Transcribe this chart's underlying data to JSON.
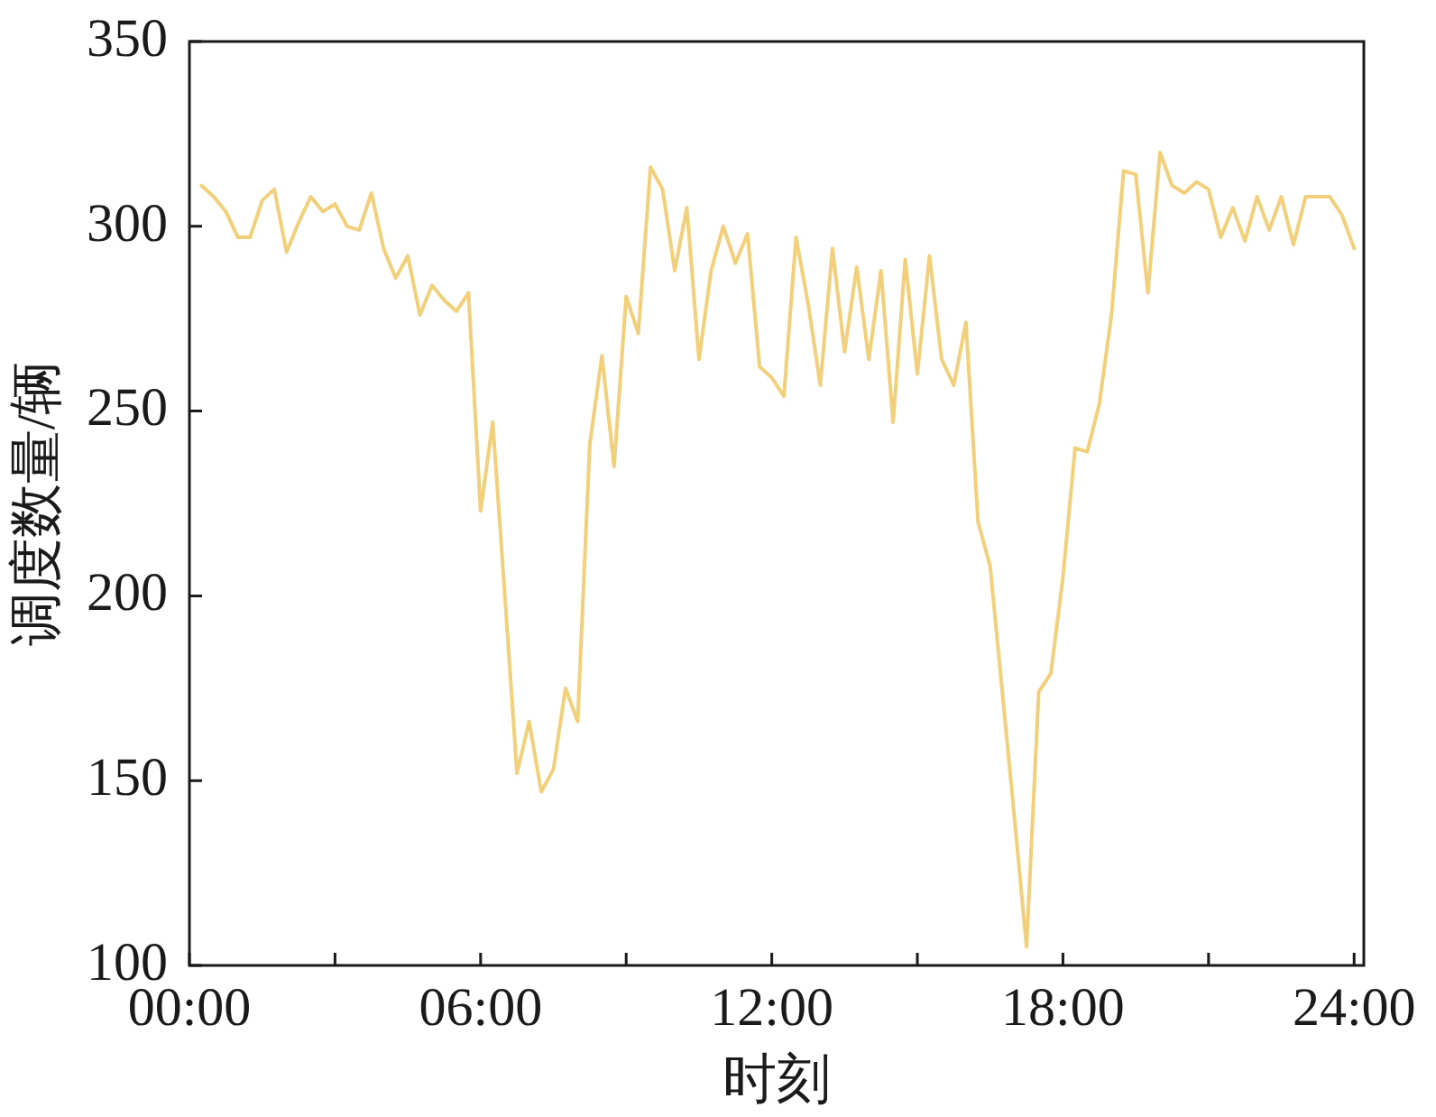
{
  "chart_data": {
    "type": "line",
    "xlabel": "时刻",
    "ylabel": "调度数量/辆",
    "x": [
      0.25,
      0.5,
      0.75,
      1,
      1.25,
      1.5,
      1.75,
      2,
      2.25,
      2.5,
      2.75,
      3,
      3.25,
      3.5,
      3.75,
      4,
      4.25,
      4.5,
      4.75,
      5,
      5.25,
      5.5,
      5.75,
      6,
      6.25,
      6.5,
      6.75,
      7,
      7.25,
      7.5,
      7.75,
      8,
      8.25,
      8.5,
      8.75,
      9,
      9.25,
      9.5,
      9.75,
      10,
      10.25,
      10.5,
      10.75,
      11,
      11.25,
      11.5,
      11.75,
      12,
      12.25,
      12.5,
      12.75,
      13,
      13.25,
      13.5,
      13.75,
      14,
      14.25,
      14.5,
      14.75,
      15,
      15.25,
      15.5,
      15.75,
      16,
      16.25,
      16.5,
      16.75,
      17,
      17.25,
      17.5,
      17.75,
      18,
      18.25,
      18.5,
      18.75,
      19,
      19.25,
      19.5,
      19.75,
      20,
      20.25,
      20.5,
      20.75,
      21,
      21.25,
      21.5,
      21.75,
      22,
      22.25,
      22.5,
      22.75,
      23,
      23.25,
      23.5,
      23.75,
      24
    ],
    "values": [
      311,
      308,
      304,
      297,
      297,
      307,
      310,
      293,
      301,
      308,
      304,
      306,
      300,
      299,
      309,
      294,
      286,
      292,
      276,
      284,
      280,
      277,
      282,
      223,
      247,
      200,
      152,
      166,
      147,
      153,
      175,
      166,
      241,
      265,
      235,
      281,
      271,
      316,
      310,
      288,
      305,
      264,
      288,
      300,
      290,
      298,
      262,
      259,
      254,
      297,
      279,
      257,
      294,
      266,
      289,
      264,
      288,
      247,
      291,
      260,
      292,
      264,
      257,
      274,
      220,
      208,
      174,
      140,
      105,
      174,
      179,
      205,
      240,
      239,
      252,
      276,
      315,
      314,
      282,
      320,
      311,
      309,
      312,
      310,
      297,
      305,
      296,
      308,
      299,
      308,
      295,
      308,
      308,
      308,
      303,
      294
    ],
    "color": "#f2cf7a",
    "xlim": [
      0,
      24.2
    ],
    "xticks": [
      {
        "value": 0,
        "label": "00:00"
      },
      {
        "value": 3,
        "label": null
      },
      {
        "value": 6,
        "label": "06:00"
      },
      {
        "value": 9,
        "label": null
      },
      {
        "value": 12,
        "label": "12:00"
      },
      {
        "value": 15,
        "label": null
      },
      {
        "value": 18,
        "label": "18:00"
      },
      {
        "value": 21,
        "label": null
      },
      {
        "value": 24,
        "label": "24:00"
      }
    ],
    "ylim": [
      100,
      350
    ],
    "yticks": [
      100,
      150,
      200,
      250,
      300,
      350
    ],
    "grid": false,
    "legend": false
  }
}
